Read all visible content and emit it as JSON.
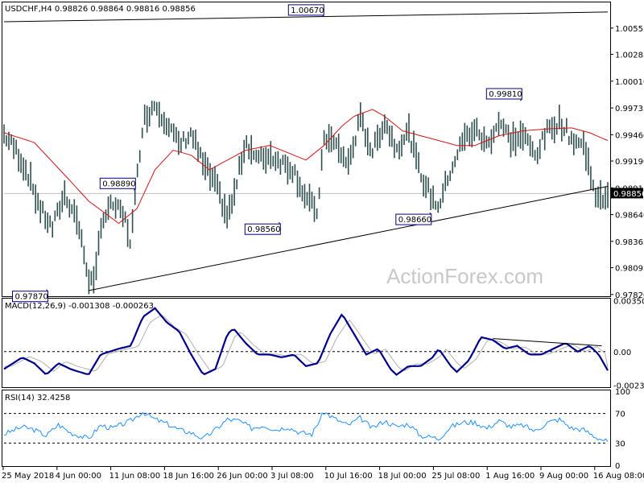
{
  "chart_data": {
    "type": "candlestick",
    "symbol_info": "USDCHF,H4  0.98826 0.98864 0.98816 0.98856",
    "watermark": "ActionForex.com",
    "price_panel": {
      "ylim": [
        0.9781,
        1.0081
      ],
      "ticks": [
        "1.00555",
        "1.00285",
        "1.00010",
        "0.99735",
        "0.99460",
        "0.99190",
        "0.98915",
        "0.98640",
        "0.98365",
        "0.98095",
        "0.97820"
      ],
      "current_price": 0.98856,
      "current_label": "0.98856",
      "annotations": [
        {
          "text": "0.97870",
          "t": 0.07,
          "value": 0.9787
        },
        {
          "text": "0.98890",
          "t": 0.215,
          "value": 0.9889
        },
        {
          "text": "0.98560",
          "t": 0.455,
          "value": 0.9856
        },
        {
          "text": "1.00670",
          "t": 0.527,
          "value": 1.0067
        },
        {
          "text": "0.98660",
          "t": 0.705,
          "value": 0.9866
        },
        {
          "text": "0.99810",
          "t": 0.855,
          "value": 0.9981
        }
      ],
      "upper_trendline": [
        [
          0.0,
          1.0062
        ],
        [
          1.0,
          1.0072
        ]
      ],
      "lower_trendline": [
        [
          0.14,
          0.9786
        ],
        [
          1.0,
          0.9893
        ]
      ],
      "price_path": [
        [
          0.0,
          0.9946
        ],
        [
          0.02,
          0.993
        ],
        [
          0.04,
          0.9905
        ],
        [
          0.06,
          0.987
        ],
        [
          0.08,
          0.985
        ],
        [
          0.1,
          0.9885
        ],
        [
          0.12,
          0.9862
        ],
        [
          0.14,
          0.98
        ],
        [
          0.15,
          0.979
        ],
        [
          0.16,
          0.9855
        ],
        [
          0.18,
          0.9875
        ],
        [
          0.2,
          0.986
        ],
        [
          0.21,
          0.9835
        ],
        [
          0.215,
          0.987
        ],
        [
          0.23,
          0.996
        ],
        [
          0.25,
          0.9978
        ],
        [
          0.27,
          0.9958
        ],
        [
          0.29,
          0.9935
        ],
        [
          0.31,
          0.9948
        ],
        [
          0.33,
          0.9915
        ],
        [
          0.35,
          0.9895
        ],
        [
          0.37,
          0.9862
        ],
        [
          0.38,
          0.988
        ],
        [
          0.4,
          0.994
        ],
        [
          0.42,
          0.992
        ],
        [
          0.44,
          0.9925
        ],
        [
          0.46,
          0.9918
        ],
        [
          0.48,
          0.991
        ],
        [
          0.5,
          0.988
        ],
        [
          0.52,
          0.9867
        ],
        [
          0.53,
          0.9945
        ],
        [
          0.55,
          0.9935
        ],
        [
          0.57,
          0.9915
        ],
        [
          0.59,
          0.9962
        ],
        [
          0.61,
          0.9928
        ],
        [
          0.63,
          0.996
        ],
        [
          0.65,
          0.9932
        ],
        [
          0.67,
          0.995
        ],
        [
          0.69,
          0.9905
        ],
        [
          0.71,
          0.988
        ],
        [
          0.72,
          0.9873
        ],
        [
          0.74,
          0.991
        ],
        [
          0.76,
          0.994
        ],
        [
          0.78,
          0.9952
        ],
        [
          0.8,
          0.9935
        ],
        [
          0.82,
          0.996
        ],
        [
          0.84,
          0.994
        ],
        [
          0.86,
          0.9945
        ],
        [
          0.88,
          0.9925
        ],
        [
          0.9,
          0.995
        ],
        [
          0.92,
          0.996
        ],
        [
          0.94,
          0.9942
        ],
        [
          0.96,
          0.9935
        ],
        [
          0.975,
          0.99
        ],
        [
          0.98,
          0.9878
        ],
        [
          0.99,
          0.988
        ],
        [
          1.0,
          0.9886
        ]
      ],
      "ma_path": [
        [
          0.0,
          0.9948
        ],
        [
          0.05,
          0.9938
        ],
        [
          0.1,
          0.9905
        ],
        [
          0.14,
          0.9878
        ],
        [
          0.19,
          0.9855
        ],
        [
          0.22,
          0.987
        ],
        [
          0.25,
          0.991
        ],
        [
          0.28,
          0.993
        ],
        [
          0.31,
          0.9925
        ],
        [
          0.34,
          0.991
        ],
        [
          0.37,
          0.992
        ],
        [
          0.4,
          0.993
        ],
        [
          0.44,
          0.9935
        ],
        [
          0.48,
          0.9925
        ],
        [
          0.5,
          0.992
        ],
        [
          0.53,
          0.9935
        ],
        [
          0.56,
          0.9955
        ],
        [
          0.58,
          0.9965
        ],
        [
          0.61,
          0.9972
        ],
        [
          0.63,
          0.9965
        ],
        [
          0.66,
          0.995
        ],
        [
          0.69,
          0.9945
        ],
        [
          0.72,
          0.994
        ],
        [
          0.75,
          0.9935
        ],
        [
          0.78,
          0.9935
        ],
        [
          0.82,
          0.9945
        ],
        [
          0.86,
          0.995
        ],
        [
          0.9,
          0.9952
        ],
        [
          0.94,
          0.9953
        ],
        [
          0.97,
          0.9948
        ],
        [
          1.0,
          0.994
        ]
      ]
    },
    "macd_panel": {
      "title": "MACD(12,26,9) -0.001308 -0.000263",
      "ylim": [
        -0.0024,
        0.0036
      ],
      "ticks": [
        "0.003505",
        "0.00",
        "-0.002328"
      ],
      "main_path": [
        [
          0.0,
          -0.0012
        ],
        [
          0.03,
          -0.0004
        ],
        [
          0.05,
          -0.0008
        ],
        [
          0.07,
          -0.0016
        ],
        [
          0.09,
          -0.0008
        ],
        [
          0.11,
          -0.0012
        ],
        [
          0.14,
          -0.0016
        ],
        [
          0.16,
          -0.0002
        ],
        [
          0.19,
          0.0002
        ],
        [
          0.21,
          0.0004
        ],
        [
          0.23,
          0.0024
        ],
        [
          0.25,
          0.003
        ],
        [
          0.27,
          0.002
        ],
        [
          0.29,
          0.0014
        ],
        [
          0.31,
          -0.0002
        ],
        [
          0.33,
          -0.0016
        ],
        [
          0.35,
          -0.0012
        ],
        [
          0.37,
          0.0012
        ],
        [
          0.38,
          0.0016
        ],
        [
          0.4,
          0.0006
        ],
        [
          0.42,
          -0.0002
        ],
        [
          0.44,
          -0.0002
        ],
        [
          0.46,
          -0.0004
        ],
        [
          0.48,
          -0.0002
        ],
        [
          0.5,
          -0.001
        ],
        [
          0.52,
          -0.0008
        ],
        [
          0.54,
          0.0012
        ],
        [
          0.56,
          0.0026
        ],
        [
          0.58,
          0.0012
        ],
        [
          0.6,
          -0.0002
        ],
        [
          0.62,
          0.0002
        ],
        [
          0.64,
          -0.0012
        ],
        [
          0.65,
          -0.0016
        ],
        [
          0.67,
          -0.001
        ],
        [
          0.69,
          -0.001
        ],
        [
          0.71,
          -0.0004
        ],
        [
          0.72,
          0.0002
        ],
        [
          0.74,
          -0.001
        ],
        [
          0.75,
          -0.0014
        ],
        [
          0.77,
          -0.0006
        ],
        [
          0.79,
          0.001
        ],
        [
          0.81,
          0.0008
        ],
        [
          0.83,
          0.0002
        ],
        [
          0.85,
          0.0004
        ],
        [
          0.87,
          -0.0002
        ],
        [
          0.89,
          -0.0002
        ],
        [
          0.91,
          0.0002
        ],
        [
          0.93,
          0.0006
        ],
        [
          0.95,
          0.0
        ],
        [
          0.97,
          0.0004
        ],
        [
          0.985,
          -0.0002
        ],
        [
          1.0,
          -0.0013
        ]
      ],
      "signal_shift": 0.012,
      "trendline": [
        [
          0.81,
          0.0009
        ],
        [
          0.99,
          0.0004
        ]
      ]
    },
    "rsi_panel": {
      "title": "RSI(14) 32.4258",
      "ylim": [
        0,
        100
      ],
      "ticks": [
        "100",
        "70",
        "30",
        "0"
      ],
      "levels": [
        70,
        30
      ],
      "path": [
        [
          0.0,
          42
        ],
        [
          0.03,
          52
        ],
        [
          0.05,
          48
        ],
        [
          0.07,
          40
        ],
        [
          0.09,
          55
        ],
        [
          0.11,
          44
        ],
        [
          0.14,
          36
        ],
        [
          0.16,
          54
        ],
        [
          0.18,
          50
        ],
        [
          0.21,
          60
        ],
        [
          0.23,
          72
        ],
        [
          0.25,
          62
        ],
        [
          0.27,
          56
        ],
        [
          0.29,
          48
        ],
        [
          0.31,
          44
        ],
        [
          0.33,
          36
        ],
        [
          0.35,
          48
        ],
        [
          0.37,
          62
        ],
        [
          0.39,
          60
        ],
        [
          0.41,
          50
        ],
        [
          0.43,
          54
        ],
        [
          0.45,
          48
        ],
        [
          0.47,
          52
        ],
        [
          0.49,
          44
        ],
        [
          0.51,
          42
        ],
        [
          0.53,
          72
        ],
        [
          0.55,
          62
        ],
        [
          0.57,
          54
        ],
        [
          0.59,
          64
        ],
        [
          0.61,
          50
        ],
        [
          0.63,
          60
        ],
        [
          0.65,
          52
        ],
        [
          0.67,
          56
        ],
        [
          0.69,
          40
        ],
        [
          0.71,
          38
        ],
        [
          0.72,
          36
        ],
        [
          0.74,
          52
        ],
        [
          0.76,
          58
        ],
        [
          0.78,
          58
        ],
        [
          0.8,
          50
        ],
        [
          0.82,
          60
        ],
        [
          0.84,
          52
        ],
        [
          0.86,
          54
        ],
        [
          0.88,
          46
        ],
        [
          0.9,
          58
        ],
        [
          0.92,
          62
        ],
        [
          0.94,
          50
        ],
        [
          0.96,
          48
        ],
        [
          0.98,
          38
        ],
        [
          1.0,
          32
        ]
      ]
    },
    "x_ticks": [
      "25 May 2018",
      "4 Jun 00:00",
      "11 Jun 08:00",
      "18 Jun 16:00",
      "26 Jun 00:00",
      "3 Jul 08:00",
      "10 Jul 16:00",
      "18 Jul 00:00",
      "25 Jul 08:00",
      "1 Aug 16:00",
      "9 Aug 00:00",
      "16 Aug 08:00"
    ],
    "colors": {
      "candle": "#2f4f4f",
      "ma": "#d21414",
      "macd_main": "#00008b",
      "macd_signal": "#b0b0b0",
      "rsi": "#1e90ff",
      "trendline": "#000000",
      "box": "#00007f"
    }
  }
}
